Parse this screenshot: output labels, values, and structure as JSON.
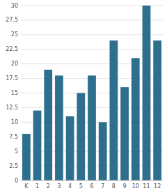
{
  "chart_data": {
    "type": "bar",
    "categories": [
      "K",
      "1",
      "2",
      "3",
      "4",
      "5",
      "6",
      "7",
      "8",
      "9",
      "10",
      "11",
      "12"
    ],
    "values": [
      8,
      12,
      19,
      18,
      11,
      15,
      18,
      10,
      24,
      16,
      21,
      30,
      24
    ],
    "color": "#2e6f8e",
    "ylim": [
      0,
      30
    ],
    "yticks": [
      0,
      2.5,
      5,
      7.5,
      10,
      12.5,
      15,
      17.5,
      20,
      22.5,
      25,
      27.5,
      30
    ],
    "grid": true
  }
}
